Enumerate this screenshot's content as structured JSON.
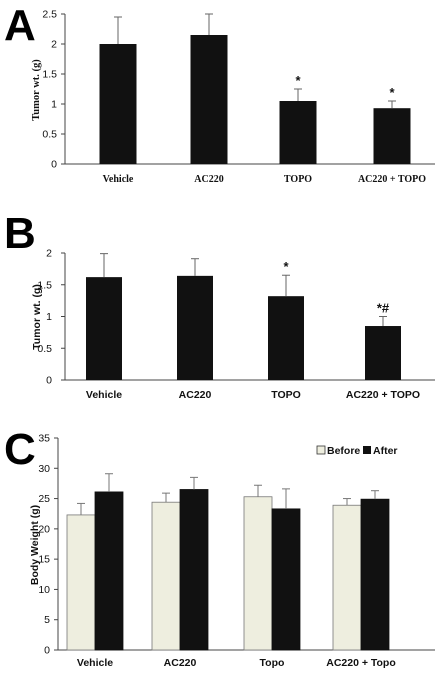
{
  "chart_data": [
    {
      "panel": "A",
      "type": "bar",
      "categories": [
        "Vehicle",
        "AC220",
        "TOPO",
        "AC220 + TOPO"
      ],
      "values": [
        2.0,
        2.15,
        1.05,
        0.93
      ],
      "errors": [
        0.45,
        0.35,
        0.2,
        0.12
      ],
      "annotations": [
        "",
        "",
        "*",
        "*"
      ],
      "ylabel": "Tumor wt. (g)",
      "xlabel": "",
      "ylim": [
        0,
        2.5
      ],
      "yticks": [
        0,
        0.5,
        1,
        1.5,
        2,
        2.5
      ],
      "ytick_labels": [
        "0",
        "0.5",
        "1",
        "1.5",
        "2",
        "2.5"
      ],
      "bar_color": "#111111",
      "grid": false
    },
    {
      "panel": "B",
      "type": "bar",
      "categories": [
        "Vehicle",
        "AC220",
        "TOPO",
        "AC220 + TOPO"
      ],
      "values": [
        1.62,
        1.64,
        1.32,
        0.85
      ],
      "errors": [
        0.37,
        0.27,
        0.33,
        0.15
      ],
      "annotations": [
        "",
        "",
        "*",
        "*#"
      ],
      "ylabel": "Tumor wt. (g)",
      "xlabel": "",
      "ylim": [
        0,
        2
      ],
      "yticks": [
        0,
        0.5,
        1,
        1.5,
        2
      ],
      "ytick_labels": [
        "0",
        "0.5",
        "1",
        "1.5",
        "2"
      ],
      "bar_color": "#111111",
      "grid": false
    },
    {
      "panel": "C",
      "type": "bar",
      "categories": [
        "Vehicle",
        "AC220",
        "Topo",
        "AC220 + Topo"
      ],
      "series": [
        {
          "name": "Before",
          "values": [
            22.3,
            24.4,
            25.3,
            23.9
          ],
          "errors": [
            1.9,
            1.5,
            1.9,
            1.1
          ],
          "color": "#eeeedf"
        },
        {
          "name": "After",
          "values": [
            26.1,
            26.5,
            23.3,
            24.9
          ],
          "errors": [
            3.0,
            2.0,
            3.3,
            1.4
          ],
          "color": "#111111"
        }
      ],
      "ylabel": "Body Weight (g)",
      "xlabel": "",
      "ylim": [
        0,
        35
      ],
      "yticks": [
        0,
        5,
        10,
        15,
        20,
        25,
        30,
        35
      ],
      "ytick_labels": [
        "0",
        "5",
        "10",
        "15",
        "20",
        "25",
        "30",
        "35"
      ],
      "legend": "top-right",
      "grid": false
    }
  ]
}
